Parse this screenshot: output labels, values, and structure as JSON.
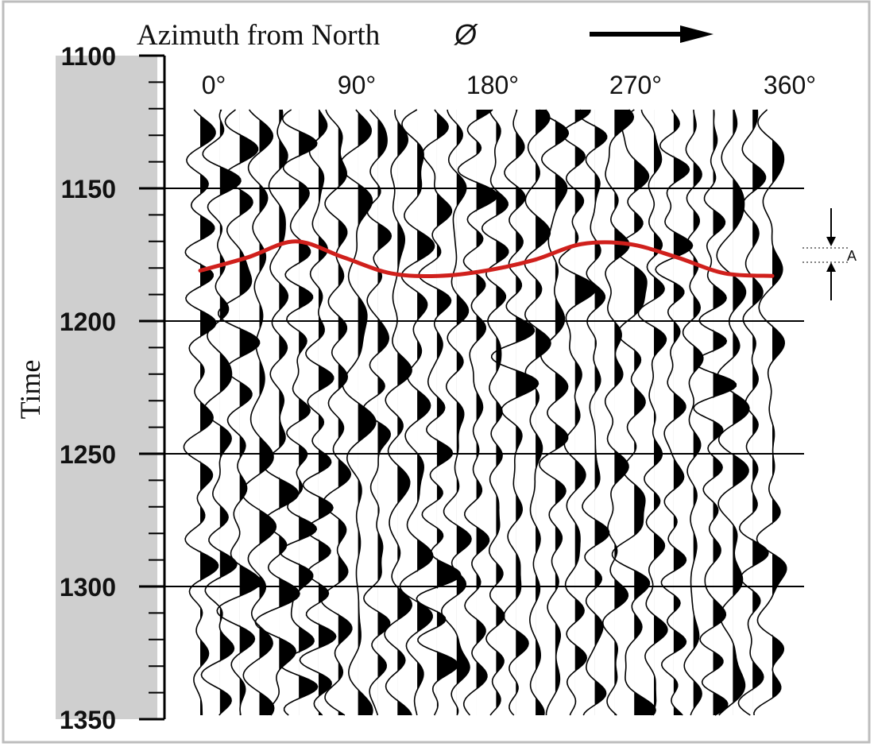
{
  "title": "Azimuth from North",
  "title_symbol": "Ø",
  "direction_arrow": "right-arrow",
  "ylabel": "Time",
  "marker_label": "A",
  "colors": {
    "traces": "#000000",
    "pick": "#d0201c",
    "axis_band": "#cfcfcf",
    "grid": "#000000",
    "background": "#ffffff"
  },
  "chart_data": {
    "type": "line",
    "title": "Azimuth from North Ø",
    "ylabel": "Time",
    "xlabel": "",
    "x_ticks": [
      0,
      90,
      180,
      270,
      360
    ],
    "x_tick_labels": [
      "0°",
      "90°",
      "180°",
      "270°",
      "360°"
    ],
    "xlim": [
      0,
      360
    ],
    "y_ticks": [
      1100,
      1150,
      1200,
      1250,
      1300,
      1350
    ],
    "y_tick_labels": [
      "1100",
      "1150",
      "1200",
      "1250",
      "1300",
      "1350"
    ],
    "ylim": [
      1100,
      1350
    ],
    "y_inverted": true,
    "grid": true,
    "trace_count": 30,
    "series": [
      {
        "x": [
          0,
          30,
          60,
          90,
          120,
          150,
          180,
          210,
          240,
          270,
          300,
          330,
          360
        ],
        "y": [
          1181,
          1176,
          1170,
          1176,
          1182,
          1183,
          1181,
          1177,
          1171,
          1171,
          1176,
          1182,
          1183
        ]
      }
    ]
  }
}
